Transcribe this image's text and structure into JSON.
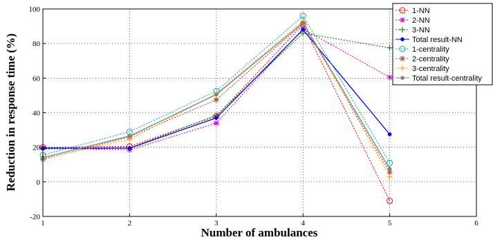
{
  "chart_data": {
    "type": "line",
    "xlabel": "Number of ambulances",
    "ylabel": "Reduction in response time (%)",
    "xlim": [
      1,
      6
    ],
    "ylim": [
      -20,
      100
    ],
    "x_ticks": [
      1,
      2,
      3,
      4,
      5,
      6
    ],
    "y_ticks": [
      -20,
      0,
      20,
      40,
      60,
      80,
      100
    ],
    "grid": true,
    "legend_position": "top-right",
    "x": [
      1,
      2,
      3,
      4,
      5
    ],
    "series": [
      {
        "name": "1-NN",
        "values": [
          20,
          20.5,
          38,
          91,
          -11
        ],
        "color": "#ff0000",
        "dash": "dotted",
        "marker": "circle"
      },
      {
        "name": "2-NN",
        "values": [
          19.5,
          18.5,
          34,
          88.5,
          60.5
        ],
        "color": "#cc00cc",
        "dash": "dotted",
        "marker": "asterisk"
      },
      {
        "name": "3-NN",
        "values": [
          19,
          19.5,
          38.5,
          86,
          77.5
        ],
        "color": "#008000",
        "dash": "dotted",
        "marker": "plus"
      },
      {
        "name": "Total result-NN",
        "values": [
          19.5,
          19.5,
          37,
          88,
          27.5
        ],
        "color": "#0000ff",
        "dash": "solid",
        "marker": "dot"
      },
      {
        "name": "1-centrality",
        "values": [
          15.5,
          29,
          52.5,
          96,
          11
        ],
        "color": "#00b0b0",
        "dash": "dotted",
        "marker": "circle"
      },
      {
        "name": "2-centrality",
        "values": [
          13,
          26,
          47.5,
          91.5,
          5.5
        ],
        "color": "#a0522d",
        "dash": "dotted",
        "marker": "asterisk"
      },
      {
        "name": "3-centrality",
        "values": [
          13.5,
          24.5,
          51,
          93,
          3
        ],
        "color": "#ff9900",
        "dash": "dotted",
        "marker": "plus"
      },
      {
        "name": "Total result-centrality",
        "values": [
          14,
          26.5,
          50.5,
          92,
          7.5
        ],
        "color": "#808080",
        "dash": "solid",
        "marker": "dot"
      }
    ]
  }
}
